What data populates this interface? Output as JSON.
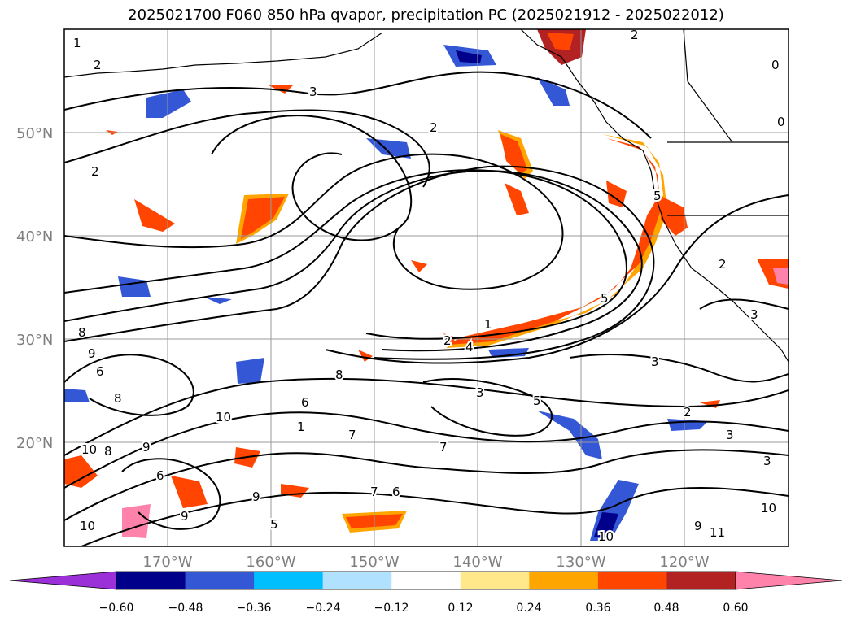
{
  "title": "2025021700 F060 850 hPa qvapor, precipitation PC (2025021912 - 2025022012)",
  "lon_ticks": [
    "170°W",
    "160°W",
    "150°W",
    "140°W",
    "130°W",
    "120°W"
  ],
  "lat_ticks": [
    "50°N",
    "40°N",
    "30°N",
    "20°N"
  ],
  "colorbar": {
    "ticks": [
      "−0.60",
      "−0.48",
      "−0.36",
      "−0.24",
      "−0.12",
      "0.12",
      "0.24",
      "0.36",
      "0.48",
      "0.60"
    ],
    "colors": [
      "#9b30d9",
      "#00008b",
      "#3457d5",
      "#00bfff",
      "#b0e2ff",
      "#ffffff",
      "#ffe88a",
      "#ffa500",
      "#ff4500",
      "#b22222",
      "#ff82ab"
    ]
  },
  "contour_labels": [
    "1",
    "2",
    "3",
    "2",
    "2",
    "0",
    "0",
    "2",
    "8",
    "9",
    "6",
    "8",
    "10",
    "10",
    "9",
    "6",
    "9",
    "8",
    "10",
    "5",
    "7",
    "8",
    "3",
    "5",
    "2",
    "3",
    "3",
    "3",
    "10",
    "9",
    "11",
    "10",
    "2",
    "4",
    "1",
    "5",
    "5",
    "3",
    "6",
    "1",
    "7",
    "6",
    "9",
    "7",
    "2"
  ],
  "chart_data": {
    "type": "map",
    "variable": "850 hPa qvapor, precipitation PC",
    "x_range": [
      "180°W",
      "110°W"
    ],
    "y_range": [
      "10°N",
      "60°N"
    ],
    "grid": true,
    "legend": "bottom colorbar",
    "colorbar_levels": [
      -0.6,
      -0.48,
      -0.36,
      -0.24,
      -0.12,
      0.12,
      0.24,
      0.36,
      0.48,
      0.6
    ]
  }
}
